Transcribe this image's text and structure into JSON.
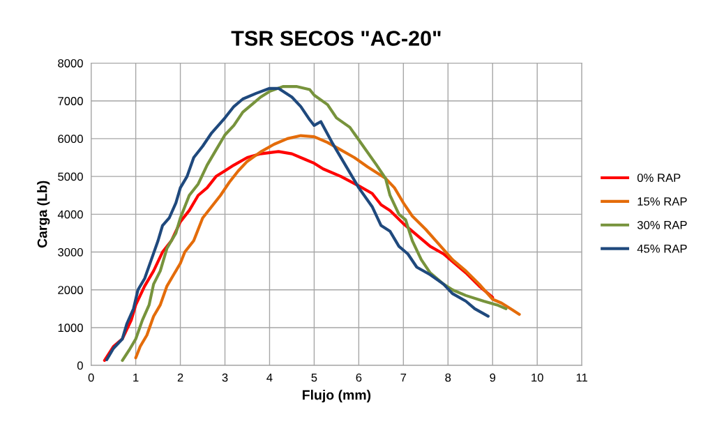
{
  "chart_data": {
    "type": "line",
    "title": "TSR SECOS \"AC-20\"",
    "xlabel": "Flujo (mm)",
    "ylabel": "Carga (Lb)",
    "xlim": [
      0,
      11
    ],
    "xticks": [
      0,
      1,
      2,
      3,
      4,
      5,
      6,
      7,
      8,
      9,
      10,
      11
    ],
    "ylim": [
      0,
      8000
    ],
    "yticks": [
      0,
      1000,
      2000,
      3000,
      4000,
      5000,
      6000,
      7000,
      8000
    ],
    "grid": true,
    "legend": "right",
    "marker": "none",
    "line_style": "solid",
    "series": [
      {
        "name": "0% RAP",
        "color": "#ff0000",
        "x": [
          0.3,
          0.5,
          0.7,
          0.9,
          1.0,
          1.2,
          1.4,
          1.6,
          1.8,
          2.0,
          2.2,
          2.4,
          2.6,
          2.8,
          3.0,
          3.2,
          3.5,
          3.8,
          4.2,
          4.5,
          4.8,
          5.0,
          5.2,
          5.6,
          6.0,
          6.3,
          6.5,
          6.7,
          7.0,
          7.3,
          7.6,
          7.9,
          8.1,
          8.4,
          8.7,
          8.9,
          9.0
        ],
        "values": [
          130,
          500,
          700,
          1200,
          1600,
          2100,
          2500,
          3000,
          3300,
          3800,
          4100,
          4500,
          4700,
          5000,
          5150,
          5300,
          5500,
          5600,
          5660,
          5600,
          5450,
          5350,
          5200,
          5000,
          4750,
          4550,
          4250,
          4100,
          3750,
          3450,
          3150,
          2950,
          2750,
          2450,
          2100,
          1900,
          1800
        ]
      },
      {
        "name": "15% RAP",
        "color": "#e46c0a",
        "x": [
          1.0,
          1.1,
          1.25,
          1.4,
          1.55,
          1.7,
          1.85,
          2.0,
          2.1,
          2.3,
          2.5,
          2.7,
          2.9,
          3.1,
          3.3,
          3.5,
          3.8,
          4.1,
          4.4,
          4.7,
          5.0,
          5.3,
          5.6,
          5.9,
          6.2,
          6.6,
          6.8,
          7.0,
          7.2,
          7.5,
          7.8,
          8.1,
          8.4,
          8.7,
          9.0,
          9.2,
          9.4,
          9.6
        ],
        "values": [
          200,
          500,
          800,
          1300,
          1600,
          2100,
          2400,
          2700,
          3000,
          3300,
          3900,
          4200,
          4500,
          4850,
          5150,
          5400,
          5650,
          5850,
          6000,
          6080,
          6050,
          5900,
          5700,
          5500,
          5250,
          4950,
          4700,
          4300,
          3950,
          3600,
          3200,
          2800,
          2500,
          2150,
          1750,
          1650,
          1500,
          1350
        ]
      },
      {
        "name": "30% RAP",
        "color": "#77933c",
        "x": [
          0.7,
          0.85,
          1.0,
          1.15,
          1.3,
          1.4,
          1.55,
          1.7,
          1.9,
          2.0,
          2.2,
          2.4,
          2.6,
          2.8,
          3.0,
          3.2,
          3.4,
          3.6,
          3.8,
          4.0,
          4.3,
          4.6,
          4.9,
          5.0,
          5.3,
          5.5,
          5.8,
          6.1,
          6.4,
          6.6,
          6.7,
          6.9,
          7.05,
          7.2,
          7.4,
          7.6,
          7.9,
          8.1,
          8.4,
          8.8,
          9.1,
          9.3
        ],
        "values": [
          130,
          400,
          700,
          1200,
          1600,
          2150,
          2500,
          3100,
          3500,
          3900,
          4500,
          4800,
          5300,
          5700,
          6100,
          6350,
          6700,
          6900,
          7100,
          7250,
          7380,
          7380,
          7300,
          7150,
          6900,
          6550,
          6300,
          5800,
          5300,
          4950,
          4500,
          4000,
          3850,
          3300,
          2800,
          2450,
          2150,
          2000,
          1850,
          1700,
          1600,
          1500
        ]
      },
      {
        "name": "45% RAP",
        "color": "#1f497d",
        "x": [
          0.35,
          0.5,
          0.7,
          0.8,
          0.95,
          1.05,
          1.2,
          1.35,
          1.5,
          1.6,
          1.75,
          1.9,
          2.0,
          2.15,
          2.3,
          2.5,
          2.7,
          3.0,
          3.2,
          3.4,
          3.7,
          4.0,
          4.2,
          4.5,
          4.7,
          4.9,
          5.0,
          5.15,
          5.4,
          5.7,
          6.0,
          6.3,
          6.5,
          6.7,
          6.9,
          7.1,
          7.3,
          7.6,
          7.9,
          8.1,
          8.4,
          8.6,
          8.9
        ],
        "values": [
          150,
          450,
          700,
          1100,
          1500,
          2000,
          2300,
          2800,
          3300,
          3700,
          3900,
          4300,
          4700,
          5000,
          5500,
          5800,
          6150,
          6550,
          6850,
          7050,
          7200,
          7330,
          7330,
          7100,
          6850,
          6500,
          6350,
          6450,
          5900,
          5300,
          4700,
          4200,
          3700,
          3550,
          3150,
          2950,
          2600,
          2400,
          2150,
          1900,
          1700,
          1500,
          1300
        ]
      }
    ]
  }
}
